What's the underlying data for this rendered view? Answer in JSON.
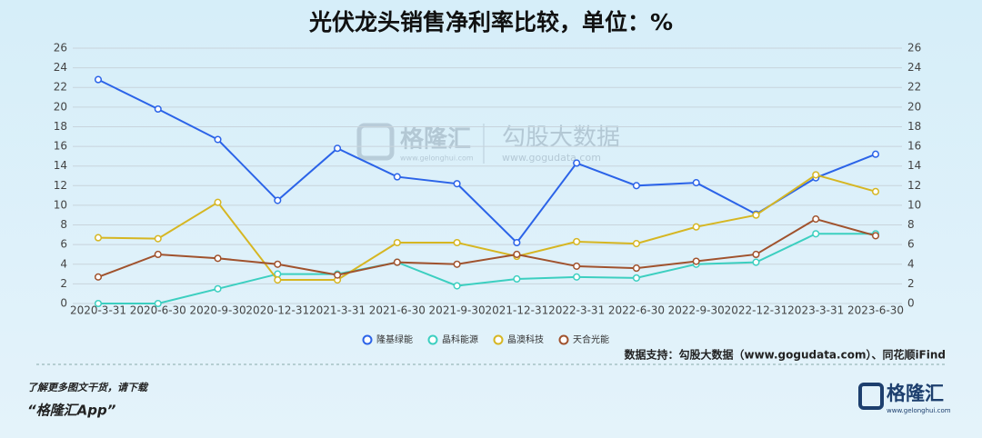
{
  "chart_data": {
    "type": "line",
    "title": "光伏龙头销售净利率比较，单位：%",
    "categories": [
      "2020-3-31",
      "2020-6-30",
      "2020-9-30",
      "2020-12-31",
      "2021-3-31",
      "2021-6-30",
      "2021-9-30",
      "2021-12-31",
      "2022-3-31",
      "2022-6-30",
      "2022-9-30",
      "2022-12-31",
      "2023-3-31",
      "2023-6-30"
    ],
    "series": [
      {
        "name": "隆基绿能",
        "color": "#2b63e8",
        "values": [
          22.8,
          19.8,
          16.7,
          10.5,
          15.8,
          12.9,
          12.2,
          6.2,
          14.3,
          12.0,
          12.3,
          9.1,
          12.8,
          15.2
        ]
      },
      {
        "name": "晶科能源",
        "color": "#3ccfc0",
        "values": [
          0,
          0,
          1.5,
          3.0,
          3.0,
          4.2,
          1.8,
          2.5,
          2.7,
          2.6,
          4.0,
          4.2,
          7.1,
          7.1
        ]
      },
      {
        "name": "晶澳科技",
        "color": "#d6b622",
        "values": [
          6.7,
          6.6,
          10.3,
          2.4,
          2.4,
          6.2,
          6.2,
          4.8,
          6.3,
          6.1,
          7.8,
          9.0,
          13.1,
          11.4
        ]
      },
      {
        "name": "天合光能",
        "color": "#a0522d",
        "values": [
          2.7,
          5.0,
          4.6,
          4.0,
          2.9,
          4.2,
          4.0,
          5.0,
          3.8,
          3.6,
          4.3,
          5.0,
          8.6,
          6.9
        ]
      }
    ],
    "ylim": [
      0,
      26
    ],
    "yticks": [
      0,
      2,
      4,
      6,
      8,
      10,
      12,
      14,
      16,
      18,
      20,
      22,
      24,
      26
    ],
    "y2lim": [
      0,
      26
    ],
    "y2ticks": [
      0,
      2,
      4,
      6,
      8,
      10,
      12,
      14,
      16,
      18,
      20,
      22,
      24,
      26
    ],
    "grid": true,
    "legend": "bottom",
    "source": "数据支持：勾股大数据（www.gogudata.com）、同花顺iFind",
    "watermark": [
      "格隆汇",
      "www.gelonghui.com",
      "勾股大数据",
      "www.gogudata.com"
    ]
  },
  "footer": {
    "prompt": "了解更多图文干货，请下载",
    "app": "“格隆汇App”",
    "logo": "格隆汇",
    "logo_url": "www.gelonghui.com"
  }
}
